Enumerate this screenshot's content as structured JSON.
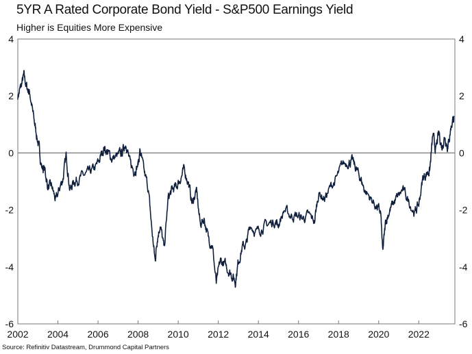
{
  "chart_data": {
    "type": "line",
    "title": "5YR A Rated Corporate Bond Yield - S&P500 Earnings Yield",
    "subtitle": "Higher is Equities More Expensive",
    "source": "Source: Refinitiv Datastream, Drummond Capital Partners",
    "xlabel": "",
    "ylabel": "",
    "xlim": [
      2002,
      2023.8
    ],
    "ylim": [
      -6,
      4
    ],
    "x_ticks": [
      "2002",
      "2004",
      "2006",
      "2008",
      "2010",
      "2012",
      "2014",
      "2016",
      "2018",
      "2020",
      "2022"
    ],
    "y_ticks": [
      "4",
      "2",
      "0",
      "-2",
      "-4",
      "-6"
    ],
    "grid": false,
    "line_color": "#0f1f3d",
    "series": [
      {
        "name": "5YR A Corp Bond Yield - S&P500 Earnings Yield",
        "x": [
          2002.0,
          2002.15,
          2002.3,
          2002.45,
          2002.6,
          2002.75,
          2002.9,
          2003.05,
          2003.2,
          2003.35,
          2003.5,
          2003.7,
          2003.9,
          2004.1,
          2004.25,
          2004.42,
          2004.6,
          2004.8,
          2005.0,
          2005.3,
          2005.6,
          2005.9,
          2006.1,
          2006.3,
          2006.5,
          2006.7,
          2007.0,
          2007.2,
          2007.4,
          2007.6,
          2007.8,
          2008.0,
          2008.1,
          2008.3,
          2008.5,
          2008.7,
          2008.85,
          2008.95,
          2009.1,
          2009.3,
          2009.5,
          2009.7,
          2009.9,
          2010.1,
          2010.3,
          2010.5,
          2010.7,
          2010.9,
          2011.1,
          2011.3,
          2011.5,
          2011.7,
          2011.9,
          2012.1,
          2012.3,
          2012.5,
          2012.7,
          2012.85,
          2013.0,
          2013.2,
          2013.4,
          2013.6,
          2013.9,
          2014.2,
          2014.5,
          2014.8,
          2015.0,
          2015.3,
          2015.6,
          2015.9,
          2016.2,
          2016.5,
          2016.8,
          2017.0,
          2017.3,
          2017.6,
          2017.9,
          2018.2,
          2018.5,
          2018.7,
          2018.9,
          2019.1,
          2019.3,
          2019.6,
          2019.9,
          2020.1,
          2020.2,
          2020.35,
          2020.5,
          2020.7,
          2020.9,
          2021.2,
          2021.5,
          2021.8,
          2022.0,
          2022.2,
          2022.4,
          2022.55,
          2022.7,
          2022.85,
          2023.0,
          2023.15,
          2023.3,
          2023.45,
          2023.6,
          2023.75
        ],
        "y": [
          2.0,
          2.3,
          2.7,
          2.3,
          2.1,
          1.4,
          0.8,
          0.2,
          -0.5,
          -0.6,
          -1.2,
          -1.2,
          -1.7,
          -1.2,
          -0.9,
          -0.1,
          -1.3,
          -1.0,
          -0.9,
          -0.8,
          -0.7,
          -0.5,
          -0.2,
          0.2,
          0.0,
          -0.2,
          -0.1,
          0.0,
          0.4,
          -0.4,
          -0.6,
          -0.4,
          0.1,
          -0.7,
          -1.2,
          -2.8,
          -3.8,
          -3.0,
          -2.5,
          -3.4,
          -1.6,
          -1.3,
          -1.2,
          -0.9,
          -0.6,
          -1.0,
          -1.8,
          -1.3,
          -2.5,
          -2.3,
          -3.0,
          -3.2,
          -4.6,
          -3.8,
          -3.9,
          -4.1,
          -4.3,
          -4.5,
          -3.8,
          -3.3,
          -3.2,
          -2.5,
          -2.8,
          -2.6,
          -2.5,
          -2.4,
          -2.5,
          -2.0,
          -2.2,
          -2.2,
          -2.3,
          -2.2,
          -2.4,
          -1.4,
          -1.6,
          -1.2,
          -0.9,
          -0.4,
          -0.3,
          -0.3,
          -0.6,
          -0.9,
          -1.3,
          -1.6,
          -1.9,
          -2.1,
          -3.5,
          -2.4,
          -2.1,
          -1.8,
          -1.6,
          -1.3,
          -1.7,
          -2.1,
          -1.8,
          -0.9,
          -0.7,
          -0.6,
          0.6,
          0.1,
          0.7,
          0.2,
          0.6,
          0.2,
          0.9,
          1.3
        ]
      }
    ]
  }
}
